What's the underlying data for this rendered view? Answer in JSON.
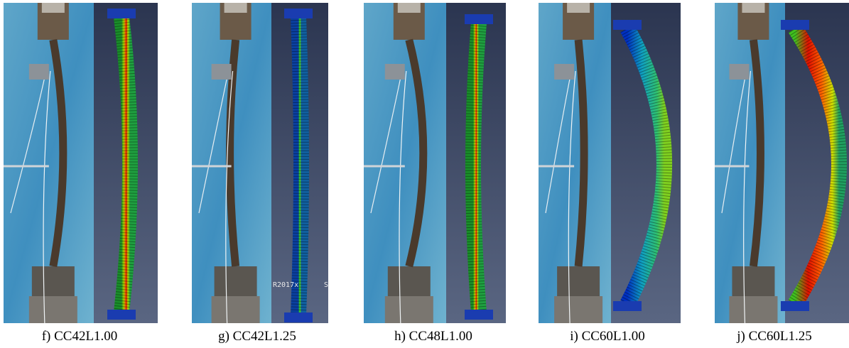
{
  "panels": [
    {
      "caption": "f) CC42L1.00"
    },
    {
      "caption": "g) CC42L1.25",
      "image_text": [
        "R2017x",
        "S"
      ]
    },
    {
      "caption": "h) CC48L1.00"
    },
    {
      "caption": "i) CC60L1.00"
    },
    {
      "caption": "j) CC60L1.25"
    }
  ]
}
